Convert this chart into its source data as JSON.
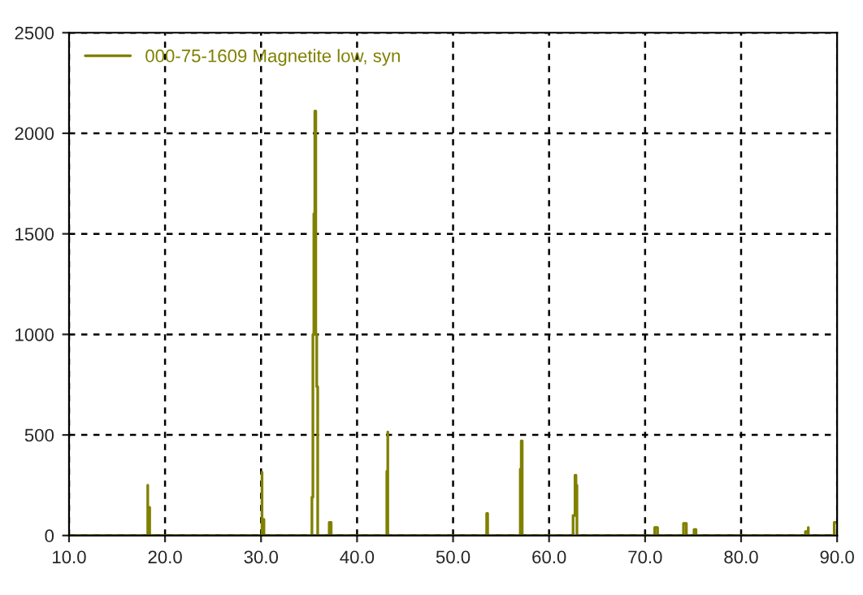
{
  "chart_data": {
    "type": "line",
    "series": [
      {
        "name": "000-75-1609 Magnetite low, syn",
        "color": "#808000",
        "x": [
          10.0,
          18.2,
          18.2,
          18.2,
          18.4,
          18.4,
          18.4,
          30.1,
          30.1,
          30.1,
          30.3,
          30.3,
          30.3,
          35.3,
          35.3,
          35.4,
          35.4,
          35.5,
          35.5,
          35.6,
          35.6,
          35.7,
          35.7,
          35.8,
          35.8,
          35.9,
          35.9,
          35.9,
          37.1,
          37.1,
          37.3,
          37.3,
          37.3,
          43.1,
          43.1,
          43.2,
          43.2,
          43.2,
          53.5,
          53.5,
          53.6,
          53.6,
          53.6,
          57.0,
          57.0,
          57.1,
          57.1,
          57.2,
          57.2,
          57.2,
          62.5,
          62.5,
          62.7,
          62.7,
          62.8,
          62.8,
          62.9,
          62.9,
          62.9,
          71.0,
          71.0,
          71.3,
          71.3,
          71.3,
          74.0,
          74.0,
          74.3,
          74.3,
          74.3,
          75.1,
          75.1,
          75.3,
          75.3,
          75.3,
          86.7,
          86.7,
          87.0,
          87.0,
          87.0,
          89.7,
          89.7,
          90.0
        ],
        "values": [
          0,
          0,
          250,
          0,
          0,
          140,
          0,
          0,
          315,
          0,
          0,
          80,
          0,
          0,
          190,
          190,
          1000,
          1000,
          1600,
          1600,
          2110,
          2110,
          1000,
          1000,
          740,
          740,
          180,
          0,
          0,
          65,
          65,
          50,
          0,
          0,
          320,
          320,
          515,
          0,
          0,
          110,
          110,
          60,
          0,
          0,
          330,
          330,
          470,
          470,
          150,
          0,
          0,
          100,
          100,
          300,
          300,
          250,
          250,
          100,
          0,
          0,
          40,
          40,
          15,
          0,
          0,
          60,
          60,
          30,
          0,
          0,
          30,
          30,
          15,
          0,
          0,
          20,
          20,
          40,
          0,
          0,
          65,
          65
        ]
      }
    ],
    "xlim": [
      10.0,
      90.0
    ],
    "xticks": [
      {
        "value": 10,
        "label": "10.0"
      },
      {
        "value": 20,
        "label": "20.0"
      },
      {
        "value": 30,
        "label": "30.0"
      },
      {
        "value": 40,
        "label": "40.0"
      },
      {
        "value": 50,
        "label": "50.0"
      },
      {
        "value": 60,
        "label": "60.0"
      },
      {
        "value": 70,
        "label": "70.0"
      },
      {
        "value": 80,
        "label": "80.0"
      },
      {
        "value": 90,
        "label": "90.0"
      }
    ],
    "ylim": [
      0,
      2500
    ],
    "yticks": [
      0,
      500,
      1000,
      1500,
      2000,
      2500
    ],
    "grid": true,
    "legend": "top left",
    "marker": "none",
    "line_style": "solid"
  }
}
